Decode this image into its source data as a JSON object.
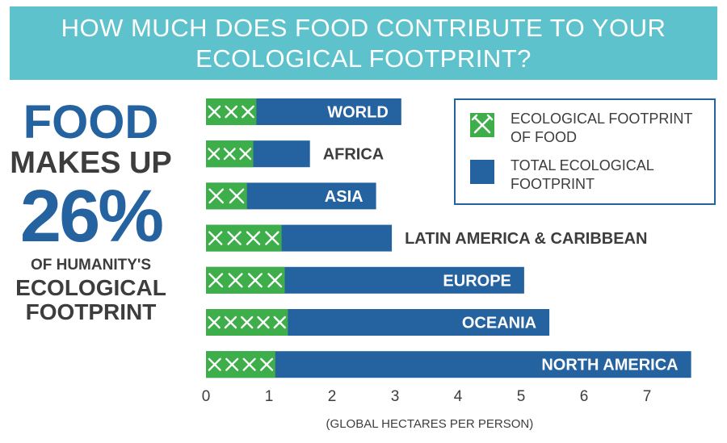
{
  "title": "HOW MUCH DOES FOOD CONTRIBUTE TO YOUR ECOLOGICAL FOOTPRINT?",
  "callout": {
    "line1": "FOOD",
    "line2": "MAKES UP",
    "line3": "26%",
    "line4": "OF HUMANITY'S",
    "line5": "ECOLOGICAL",
    "line6": "FOOTPRINT"
  },
  "legend": {
    "food": "ECOLOGICAL FOOTPRINT OF FOOD",
    "total": "TOTAL ECOLOGICAL FOOTPRINT"
  },
  "colors": {
    "banner": "#5ec2cc",
    "food": "#3dae4a",
    "total": "#2563a0",
    "text": "#3d3d3d"
  },
  "chart_data": {
    "type": "bar",
    "orientation": "horizontal",
    "categories": [
      "WORLD",
      "AFRICA",
      "ASIA",
      "LATIN AMERICA & CARIBBEAN",
      "EUROPE",
      "OCEANIA",
      "NORTH AMERICA"
    ],
    "series": [
      {
        "name": "ECOLOGICAL FOOTPRINT OF FOOD",
        "values": [
          0.8,
          0.75,
          0.65,
          1.2,
          1.25,
          1.3,
          1.1
        ]
      },
      {
        "name": "TOTAL ECOLOGICAL FOOTPRINT",
        "values": [
          3.1,
          1.65,
          2.7,
          2.95,
          5.05,
          5.45,
          7.7
        ]
      }
    ],
    "xlabel": "(GLOBAL HECTARES PER PERSON)",
    "xlim": [
      0,
      7.7
    ],
    "xticks": [
      "0",
      "1",
      "2",
      "3",
      "4",
      "5",
      "6",
      "7"
    ],
    "legend_position": "top-right",
    "grid": false
  }
}
